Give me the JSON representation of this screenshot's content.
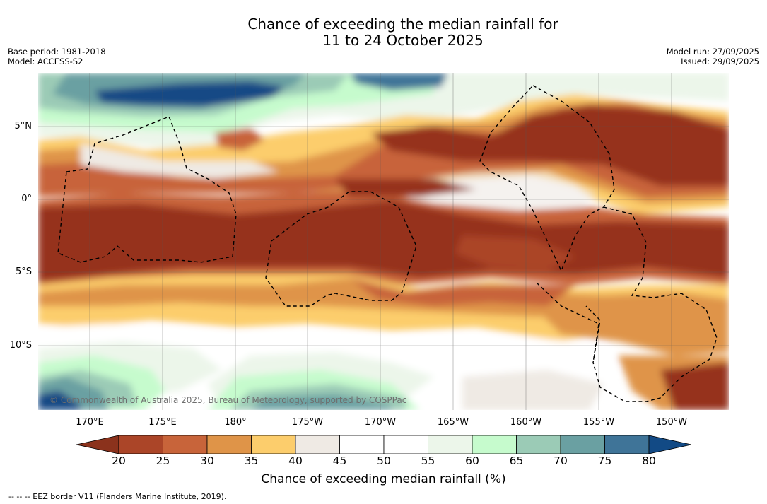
{
  "title": {
    "line1": "Chance of exceeding the median rainfall for",
    "line2": "11 to 24 October 2025"
  },
  "meta_left": {
    "base_period": "Base period: 1981-2018",
    "model": "Model: ACCESS-S2"
  },
  "meta_right": {
    "model_run": "Model run: 27/09/2025",
    "issued": "Issued: 29/09/2025"
  },
  "map": {
    "latitude_labels": [
      "5°N",
      "0°",
      "5°S",
      "10°S"
    ],
    "longitude_labels": [
      "170°E",
      "175°E",
      "180°",
      "175°W",
      "170°W",
      "165°W",
      "160°W",
      "155°W",
      "150°W"
    ],
    "copyright": "© Commonwealth of Australia 2025, Bureau of Meteorology, supported by COSPPac"
  },
  "colorbar": {
    "ticks": [
      "20",
      "25",
      "30",
      "35",
      "40",
      "45",
      "50",
      "55",
      "60",
      "65",
      "70",
      "75",
      "80"
    ],
    "colors": {
      "below_20": "#8b321c",
      "c20_25": "#ab4528",
      "c25_30": "#c8643a",
      "c30_35": "#df9448",
      "c35_40": "#fccd6c",
      "c40_45": "#efeae4",
      "c45_50": "#ffffff",
      "c50_55": "#ffffff",
      "c55_60": "#ecf6ea",
      "c60_65": "#c6fbcd",
      "c65_70": "#9bcbb6",
      "c70_75": "#6aa0a2",
      "c75_80": "#3f7498",
      "above_80": "#124a85",
      "strong_below": "#96321f"
    },
    "label": "Chance of exceeding median rainfall (%)"
  },
  "legend_note": "-- -- -- EEZ border V11 (Flanders Marine Institute, 2019)."
}
